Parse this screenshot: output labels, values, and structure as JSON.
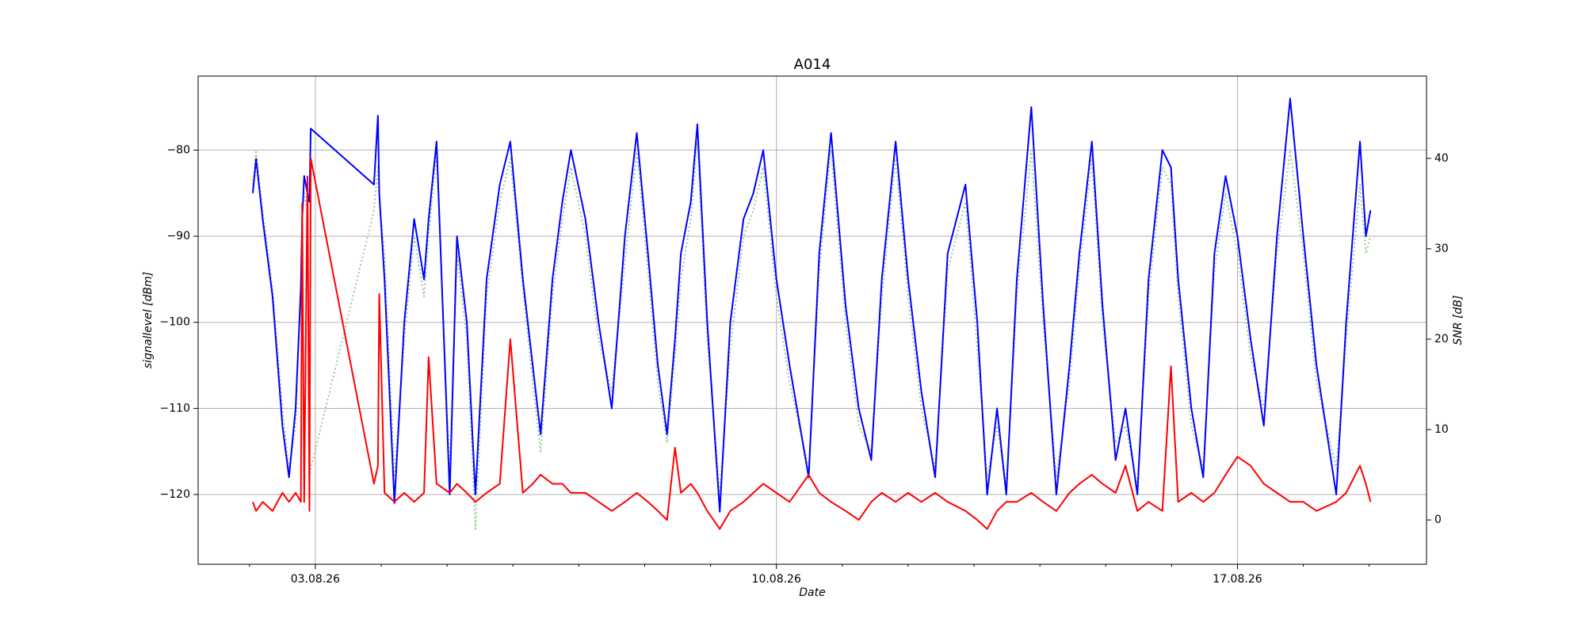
{
  "chart_data": {
    "type": "line",
    "title": "A014",
    "x_label": "Date",
    "y_label": "signallevel [dBm]",
    "y2_label": "SNR [dB]",
    "grid": true,
    "xlim": [
      1.22,
      19.87
    ],
    "ylim": [
      -128.1,
      -71.4
    ],
    "y2lim": [
      -4.9,
      49.1
    ],
    "xticks": [
      {
        "value": 3,
        "label": "03.08.26"
      },
      {
        "value": 10,
        "label": "10.08.26"
      },
      {
        "value": 17,
        "label": "17.08.26"
      }
    ],
    "xminorticks": [
      2,
      4,
      5,
      6,
      7,
      8,
      9,
      11,
      12,
      13,
      14,
      15,
      16,
      18,
      19
    ],
    "yticks": [
      {
        "value": -120,
        "label": "−120"
      },
      {
        "value": -110,
        "label": "−110"
      },
      {
        "value": -100,
        "label": "−100"
      },
      {
        "value": -90,
        "label": "−90"
      },
      {
        "value": -80,
        "label": "−80"
      }
    ],
    "y2ticks": [
      0,
      10,
      20,
      30,
      40
    ],
    "x": [
      2.05,
      2.1,
      2.2,
      2.35,
      2.5,
      2.6,
      2.7,
      2.78,
      2.8,
      2.83,
      2.88,
      2.91,
      2.93,
      3.89,
      3.95,
      3.97,
      4.05,
      4.2,
      4.35,
      4.5,
      4.65,
      4.72,
      4.84,
      5.04,
      5.15,
      5.3,
      5.43,
      5.6,
      5.8,
      5.96,
      6.15,
      6.3,
      6.42,
      6.6,
      6.75,
      6.88,
      7.1,
      7.3,
      7.5,
      7.7,
      7.88,
      8.05,
      8.2,
      8.34,
      8.46,
      8.55,
      8.7,
      8.8,
      8.95,
      9.14,
      9.3,
      9.5,
      9.65,
      9.8,
      10.0,
      10.2,
      10.49,
      10.65,
      10.83,
      11.05,
      11.25,
      11.44,
      11.6,
      11.81,
      12.0,
      12.2,
      12.41,
      12.6,
      12.87,
      13.05,
      13.2,
      13.35,
      13.49,
      13.65,
      13.87,
      14.05,
      14.25,
      14.45,
      14.6,
      14.79,
      14.95,
      15.15,
      15.3,
      15.48,
      15.65,
      15.86,
      15.99,
      16.1,
      16.3,
      16.48,
      16.65,
      16.82,
      17.0,
      17.2,
      17.4,
      17.6,
      17.8,
      18.0,
      18.2,
      18.5,
      18.65,
      18.86,
      18.95,
      19.02
    ],
    "series": [
      {
        "color": "#99cc99",
        "linestyle": "dotted",
        "axis": "y",
        "values": [
          -84,
          -80,
          -87,
          -96,
          -110,
          -117,
          -112,
          -95,
          -88,
          -85,
          -87,
          -118,
          -117,
          -87,
          -82,
          -86,
          -92,
          -118,
          -102,
          -90,
          -97,
          -90,
          -80,
          -118,
          -92,
          -102,
          -124,
          -97,
          -86,
          -81,
          -96,
          -107,
          -115,
          -97,
          -88,
          -82,
          -90,
          -102,
          -108,
          -93,
          -80,
          -94,
          -107,
          -114,
          -104,
          -95,
          -88,
          -79,
          -102,
          -120,
          -103,
          -90,
          -87,
          -82,
          -97,
          -107,
          -117,
          -94,
          -80,
          -100,
          -112,
          -115,
          -97,
          -81,
          -97,
          -110,
          -117,
          -94,
          -86,
          -103,
          -118,
          -112,
          -119,
          -97,
          -80,
          -100,
          -118,
          -107,
          -94,
          -81,
          -100,
          -114,
          -112,
          -119,
          -97,
          -82,
          -84,
          -97,
          -112,
          -117,
          -94,
          -85,
          -92,
          -104,
          -110,
          -92,
          -80,
          -92,
          -107,
          -117,
          -102,
          -84,
          -92,
          -90
        ]
      },
      {
        "color": "#0000ff",
        "linestyle": "solid",
        "axis": "y",
        "values": [
          -85,
          -81,
          -88,
          -97,
          -112,
          -118,
          -110,
          -96,
          -88,
          -83,
          -85,
          -86,
          -77.5,
          -84,
          -76,
          -85,
          -95,
          -121,
          -100,
          -88,
          -95,
          -88,
          -79,
          -120,
          -90,
          -100,
          -120,
          -95,
          -84,
          -79,
          -95,
          -105,
          -113,
          -95,
          -86,
          -80,
          -88,
          -100,
          -110,
          -90,
          -78,
          -92,
          -105,
          -113,
          -102,
          -92,
          -86,
          -77,
          -100,
          -122,
          -100,
          -88,
          -85,
          -80,
          -95,
          -105,
          -118,
          -92,
          -78,
          -98,
          -110,
          -116,
          -95,
          -79,
          -95,
          -108,
          -118,
          -92,
          -84,
          -100,
          -120,
          -110,
          -120,
          -95,
          -75,
          -98,
          -120,
          -105,
          -92,
          -79,
          -98,
          -116,
          -110,
          -120,
          -95,
          -80,
          -82,
          -95,
          -110,
          -118,
          -92,
          -83,
          -90,
          -102,
          -112,
          -90,
          -74,
          -90,
          -105,
          -120,
          -100,
          -79,
          -90,
          -87
        ]
      },
      {
        "color": "#ff0000",
        "linestyle": "solid",
        "axis": "y2",
        "values": [
          2,
          1,
          2,
          1,
          3,
          2,
          3,
          2,
          35,
          2,
          38,
          1,
          40,
          4,
          6,
          25,
          3,
          2,
          3,
          2,
          3,
          18,
          4,
          3,
          4,
          3,
          2,
          3,
          4,
          20,
          3,
          4,
          5,
          4,
          4,
          3,
          3,
          2,
          1,
          2,
          3,
          2,
          1,
          0,
          8,
          3,
          4,
          3,
          1,
          -1,
          1,
          2,
          3,
          4,
          3,
          2,
          5,
          3,
          2,
          1,
          0,
          2,
          3,
          2,
          3,
          2,
          3,
          2,
          1,
          0,
          -1,
          1,
          2,
          2,
          3,
          2,
          1,
          3,
          4,
          5,
          4,
          3,
          6,
          1,
          2,
          1,
          17,
          2,
          3,
          2,
          3,
          5,
          7,
          6,
          4,
          3,
          2,
          2,
          1,
          2,
          3,
          6,
          4,
          2
        ]
      }
    ]
  }
}
